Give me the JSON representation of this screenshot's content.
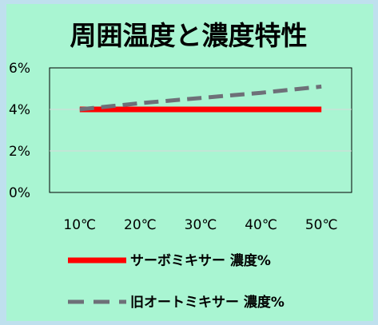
{
  "chart_data": {
    "type": "line",
    "title": "周囲温度と濃度特性",
    "categories": [
      "10℃",
      "20℃",
      "30℃",
      "40℃",
      "50℃"
    ],
    "yticks": [
      "0%",
      "2%",
      "4%",
      "6%"
    ],
    "ylim": [
      0,
      6
    ],
    "grid": true,
    "legend_position": "bottom",
    "series": [
      {
        "name": "サーボミキサー 濃度%",
        "values": [
          4.0,
          4.0,
          4.0,
          4.0,
          4.0
        ],
        "color": "#ff0000",
        "style": "solid"
      },
      {
        "name": "旧オートミキサー 濃度%",
        "values": [
          4.0,
          4.3,
          4.55,
          4.8,
          5.1
        ],
        "color": "#6e7078",
        "style": "dashed"
      }
    ]
  }
}
